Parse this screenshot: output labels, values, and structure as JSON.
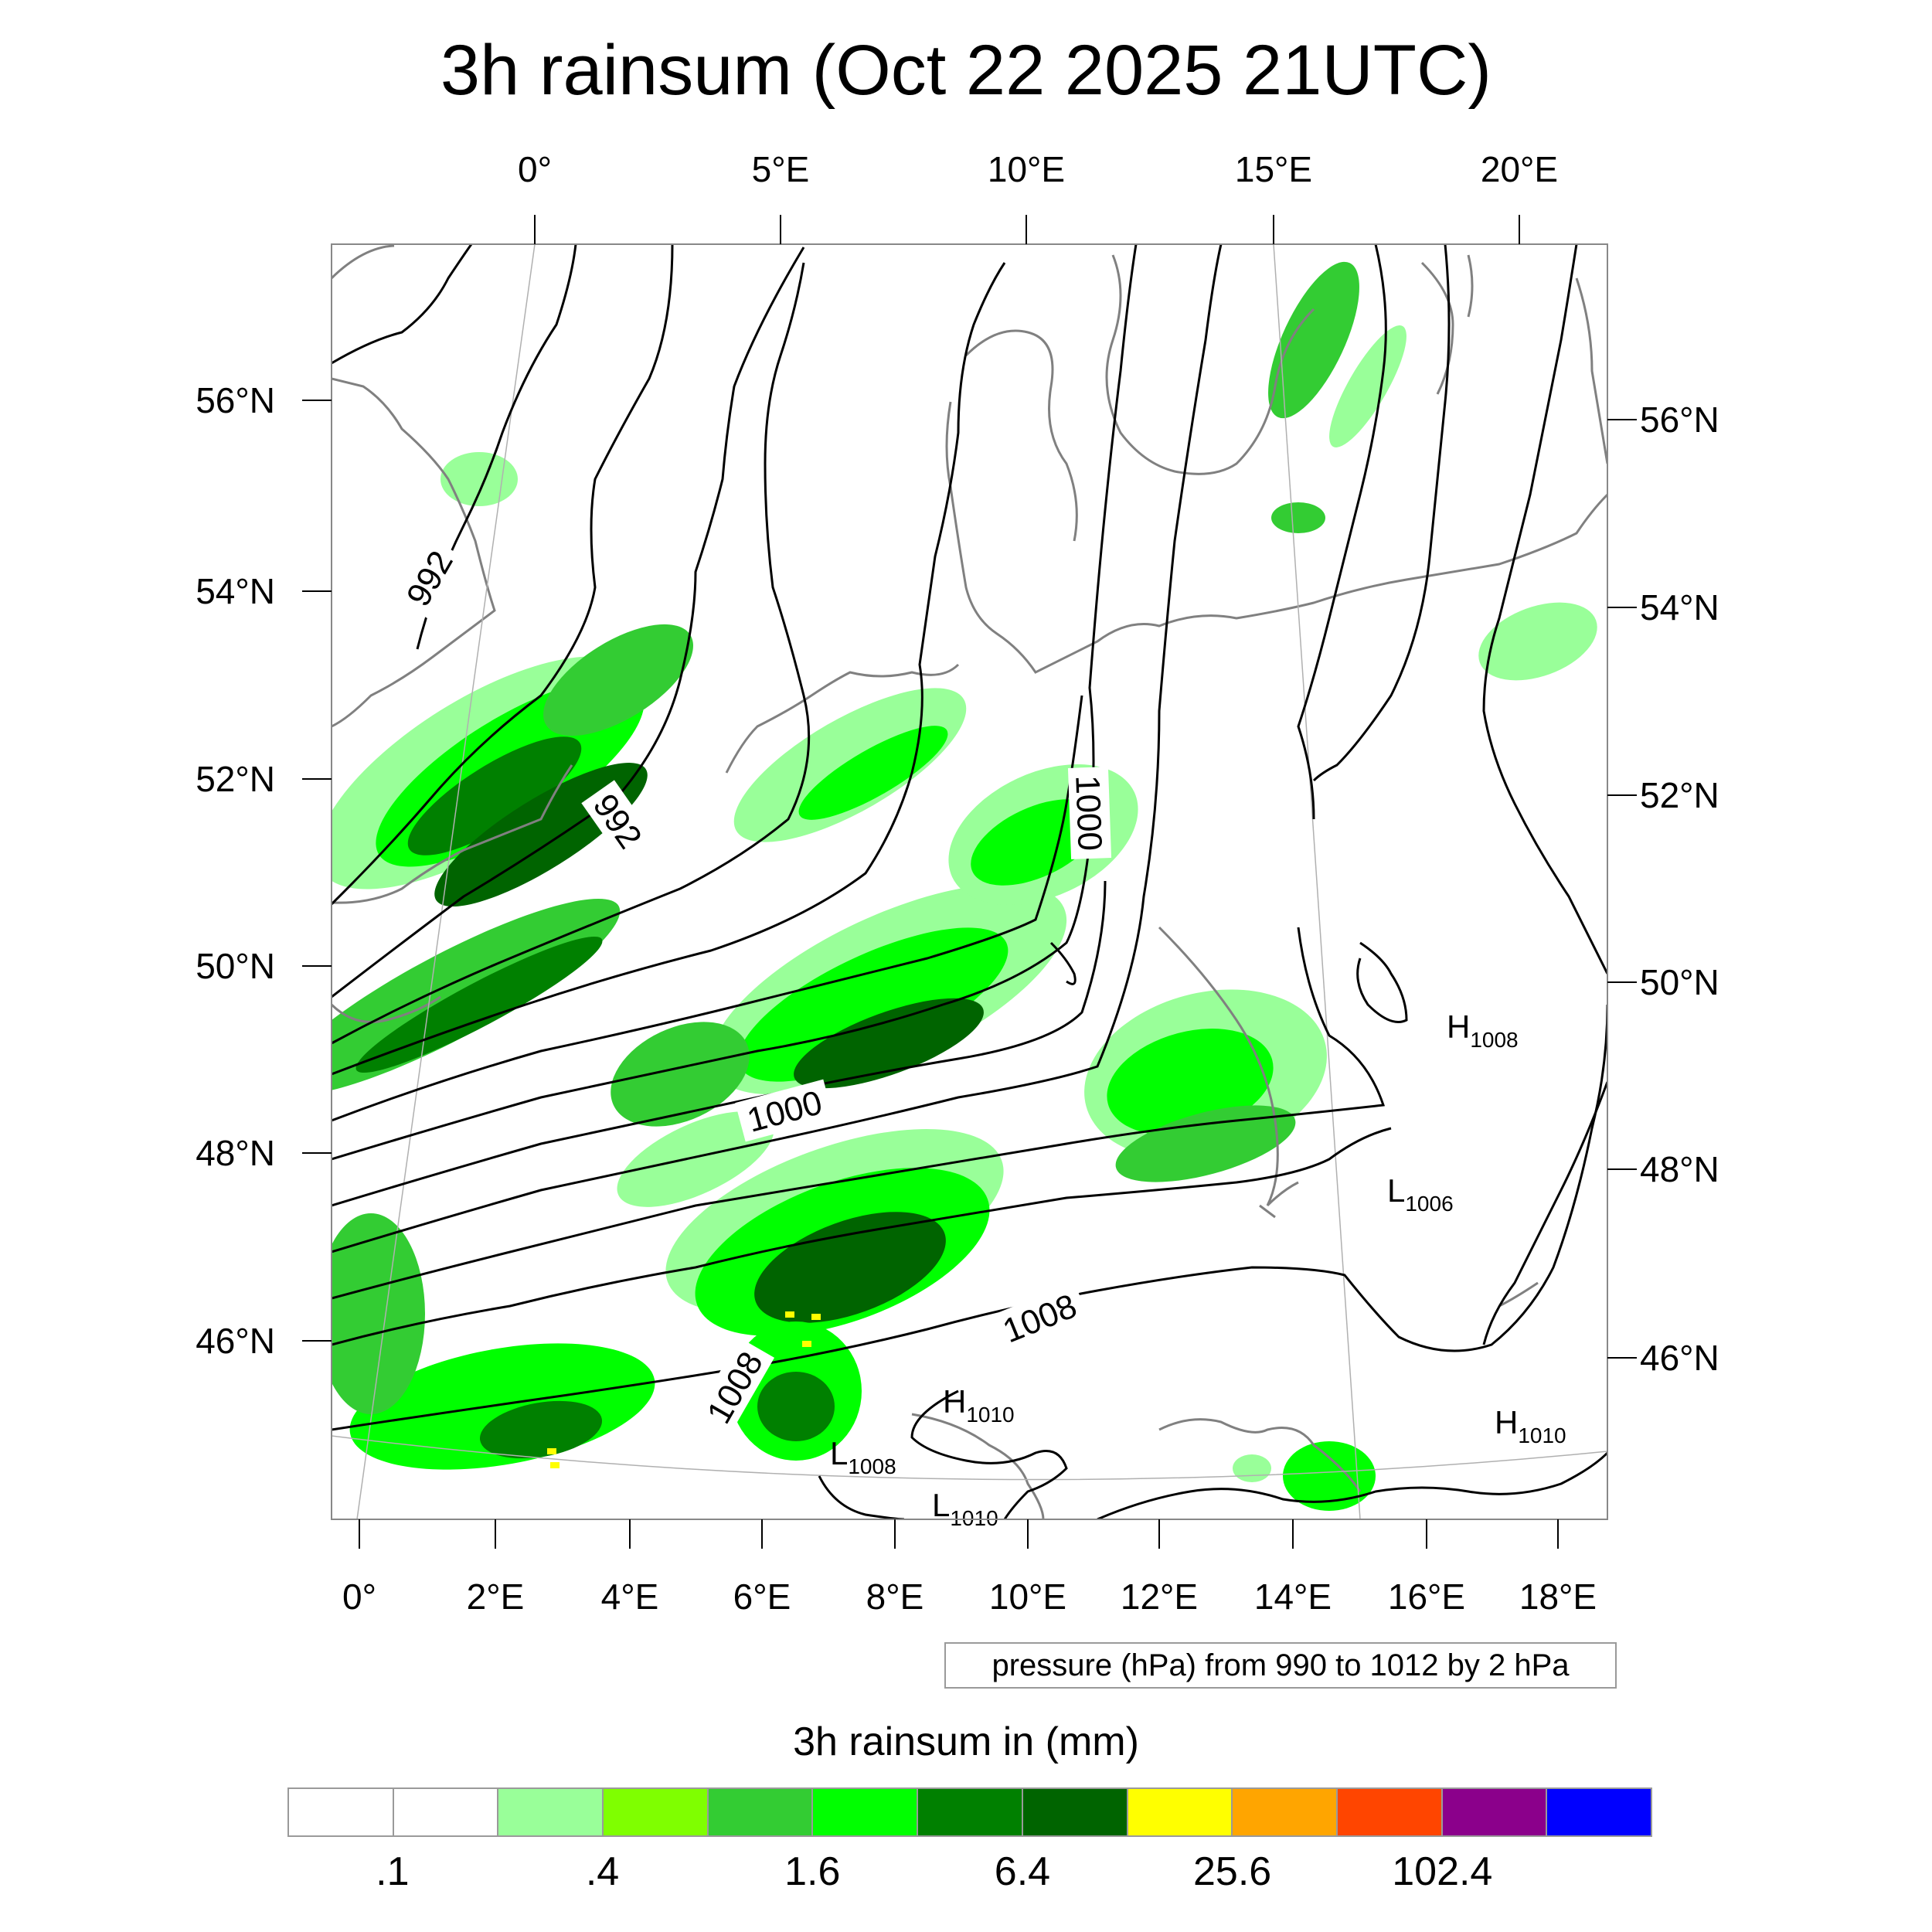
{
  "title": "3h rainsum (Oct 22 2025 21UTC)",
  "axes": {
    "top_lon_ticks": [
      "0°",
      "5°E",
      "10°E",
      "15°E",
      "20°E"
    ],
    "bottom_lon_ticks": [
      "0°",
      "2°E",
      "4°E",
      "6°E",
      "8°E",
      "10°E",
      "12°E",
      "14°E",
      "16°E",
      "18°E"
    ],
    "left_lat_ticks": [
      "56°N",
      "54°N",
      "52°N",
      "50°N",
      "48°N",
      "46°N"
    ],
    "right_lat_ticks": [
      "56°N",
      "54°N",
      "52°N",
      "50°N",
      "48°N",
      "46°N"
    ]
  },
  "map_data": {
    "field": "3h rainsum",
    "contour_field": "pressure (hPa)",
    "contour_labels": [
      "992",
      "992",
      "1000",
      "1000",
      "1008",
      "1008"
    ],
    "pressure_centers": [
      {
        "type": "H",
        "value": "1008",
        "lon": 16.5,
        "lat": 48.9
      },
      {
        "type": "L",
        "value": "1006",
        "lon": 15.5,
        "lat": 47.7
      },
      {
        "type": "H",
        "value": "1010",
        "lon": 8.7,
        "lat": 45.5
      },
      {
        "type": "L",
        "value": "1008",
        "lon": 6.9,
        "lat": 45.0
      },
      {
        "type": "L",
        "value": "1010",
        "lon": 8.8,
        "lat": 44.6
      },
      {
        "type": "H",
        "value": "1010",
        "lon": 17.6,
        "lat": 45.2
      }
    ],
    "colors": {
      "coast": "#808080",
      "isobar": "#000000",
      "rain_light": "#99ff99",
      "rain_mid": "#33cc33",
      "rain_bright": "#00ff00",
      "rain_dark": "#008000",
      "rain_darkest": "#006400",
      "rain_heavy": "#ffff00"
    }
  },
  "contour_note": "pressure (hPa) from 990 to 1012 by 2 hPa",
  "colorbar": {
    "title": "3h rainsum in (mm)",
    "colors": [
      "#ffffff",
      "#ffffff",
      "#99ff99",
      "#7fff00",
      "#33cc33",
      "#00ff00",
      "#008000",
      "#006400",
      "#ffff00",
      "#ffa500",
      "#ff4500",
      "#8b008b",
      "#0000ff"
    ],
    "labels": [
      ".1",
      ".4",
      "1.6",
      "6.4",
      "25.6",
      "102.4"
    ]
  }
}
